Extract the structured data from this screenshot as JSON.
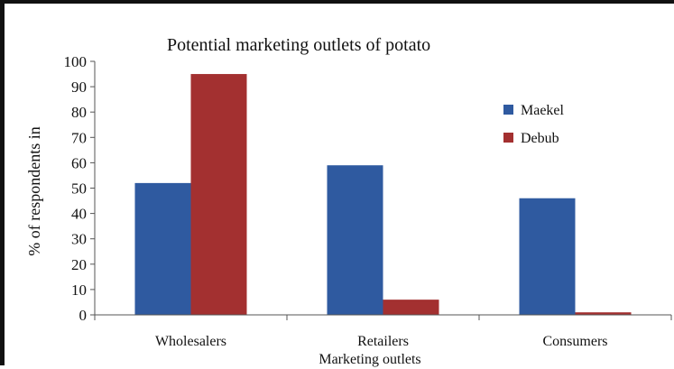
{
  "chart_data": {
    "type": "bar",
    "title": "Potential marketing outlets of potato",
    "xlabel": "Marketing outlets",
    "ylabel": "% of respondents in",
    "categories": [
      "Wholesalers",
      "Retailers",
      "Consumers"
    ],
    "series": [
      {
        "name": "Maekel",
        "values": [
          52,
          59,
          46
        ],
        "color": "#2f5aa0"
      },
      {
        "name": "Debub",
        "values": [
          95,
          6,
          1
        ],
        "color": "#a33030"
      }
    ],
    "ylim": [
      0,
      100
    ],
    "yticks": [
      "0",
      "10",
      "20",
      "30",
      "40",
      "50",
      "60",
      "70",
      "80",
      "90",
      "100"
    ],
    "grid": false,
    "legend": "right"
  }
}
